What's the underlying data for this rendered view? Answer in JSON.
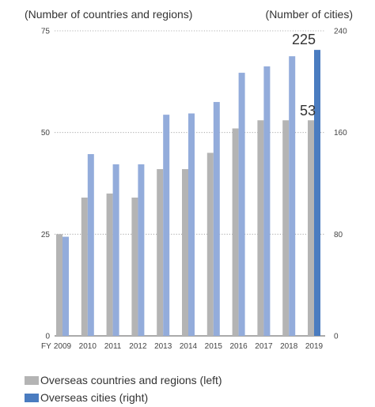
{
  "chart_data": {
    "type": "bar",
    "x_prefix": "FY",
    "categories": [
      "2009",
      "2010",
      "2011",
      "2012",
      "2013",
      "2014",
      "2015",
      "2016",
      "2017",
      "2018",
      "2019"
    ],
    "series": [
      {
        "name": "Overseas countries and regions (left)",
        "axis": "left",
        "color": "#b4b4b4",
        "values": [
          25,
          34,
          35,
          34,
          41,
          41,
          45,
          51,
          53,
          53,
          53
        ]
      },
      {
        "name": "Overseas cities (right)",
        "axis": "right",
        "color": "#93acdb",
        "highlight_color": "#4a7cc0",
        "values": [
          78,
          143,
          135,
          135,
          174,
          175,
          184,
          207,
          212,
          220,
          225
        ]
      }
    ],
    "left_axis": {
      "title": "(Number of countries and regions)",
      "ylim": [
        0,
        75
      ],
      "ticks": [
        "0",
        "25",
        "50",
        "75"
      ]
    },
    "right_axis": {
      "title": "(Number of cities)",
      "ylim": [
        0,
        240
      ],
      "ticks": [
        "0",
        "80",
        "160",
        "240"
      ]
    },
    "annotations": [
      "225",
      "53"
    ],
    "grid": "dotted horizontal",
    "legend": "bottom-left"
  },
  "legend": {
    "items": [
      {
        "label": "Overseas countries and regions (left)",
        "color": "#b4b4b4"
      },
      {
        "label": "Overseas cities (right)",
        "color": "#4a7cc0"
      }
    ]
  }
}
